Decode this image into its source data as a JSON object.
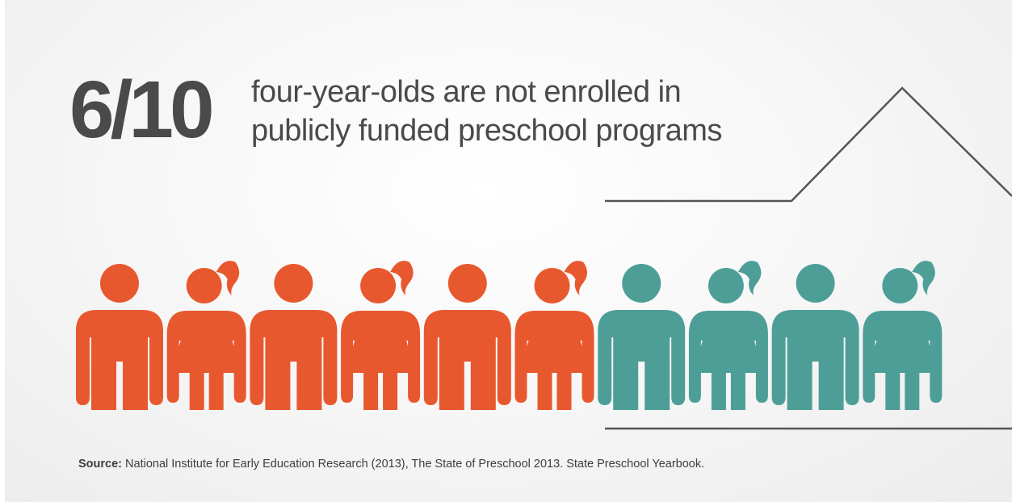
{
  "headline": {
    "figure": "6/10",
    "line_1": "four-year-olds are not enrolled in",
    "line_2": "publicly funded preschool programs"
  },
  "figures": {
    "not_enrolled": 6,
    "total": 10,
    "sequence": [
      "boy",
      "girl",
      "boy",
      "girl",
      "boy",
      "girl",
      "boy",
      "girl",
      "boy",
      "girl"
    ]
  },
  "colors": {
    "not_enrolled": "#e8582e",
    "enrolled": "#4e9e98",
    "text": "#4a4a4a",
    "house_line": "#555555"
  },
  "source": {
    "label": "Source:",
    "text": " National Institute for Early Education Research (2013), The State of Preschool 2013. State Preschool Yearbook."
  }
}
